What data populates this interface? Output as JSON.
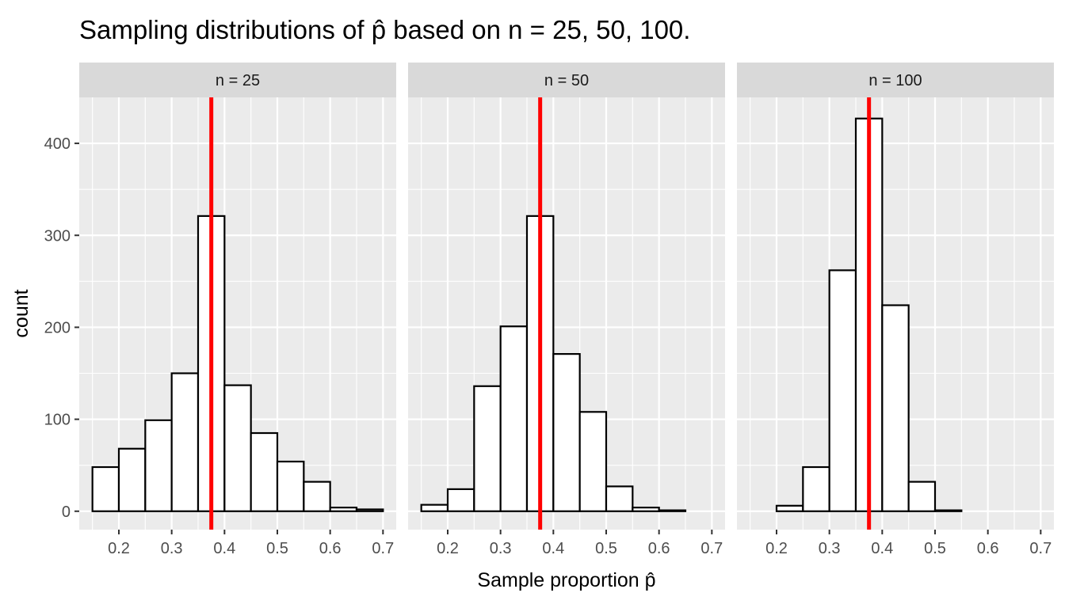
{
  "chart_data": {
    "type": "bar",
    "title": "Sampling distributions of p̂ based on n = 25, 50, 100.",
    "xlabel": "Sample proportion p̂",
    "ylabel": "count",
    "xlim": [
      0.125,
      0.725
    ],
    "ylim": [
      -20,
      450
    ],
    "x_ticks": [
      0.2,
      0.3,
      0.4,
      0.5,
      0.6,
      0.7
    ],
    "x_tick_labels": [
      "0.2",
      "0.3",
      "0.4",
      "0.5",
      "0.6",
      "0.7"
    ],
    "y_ticks": [
      0,
      100,
      200,
      300,
      400
    ],
    "y_tick_labels": [
      "0",
      "100",
      "200",
      "300",
      "400"
    ],
    "bin_width": 0.05,
    "bin_centers": [
      0.175,
      0.225,
      0.275,
      0.325,
      0.375,
      0.425,
      0.475,
      0.525,
      0.575,
      0.625,
      0.675
    ],
    "reference_line": {
      "x": 0.375,
      "color": "#ff0000"
    },
    "bar_fill": "#ffffff",
    "bar_stroke": "#000000",
    "panel_background": "#ebebeb",
    "strip_background": "#d9d9d9",
    "panels": [
      {
        "label": "n = 25",
        "values": [
          48,
          68,
          99,
          150,
          321,
          137,
          85,
          54,
          32,
          4,
          2
        ]
      },
      {
        "label": "n = 50",
        "values": [
          7,
          24,
          136,
          201,
          321,
          171,
          108,
          27,
          4,
          1,
          0
        ]
      },
      {
        "label": "n = 100",
        "values": [
          0,
          6,
          48,
          262,
          427,
          224,
          32,
          1,
          0,
          0,
          0
        ]
      }
    ]
  }
}
